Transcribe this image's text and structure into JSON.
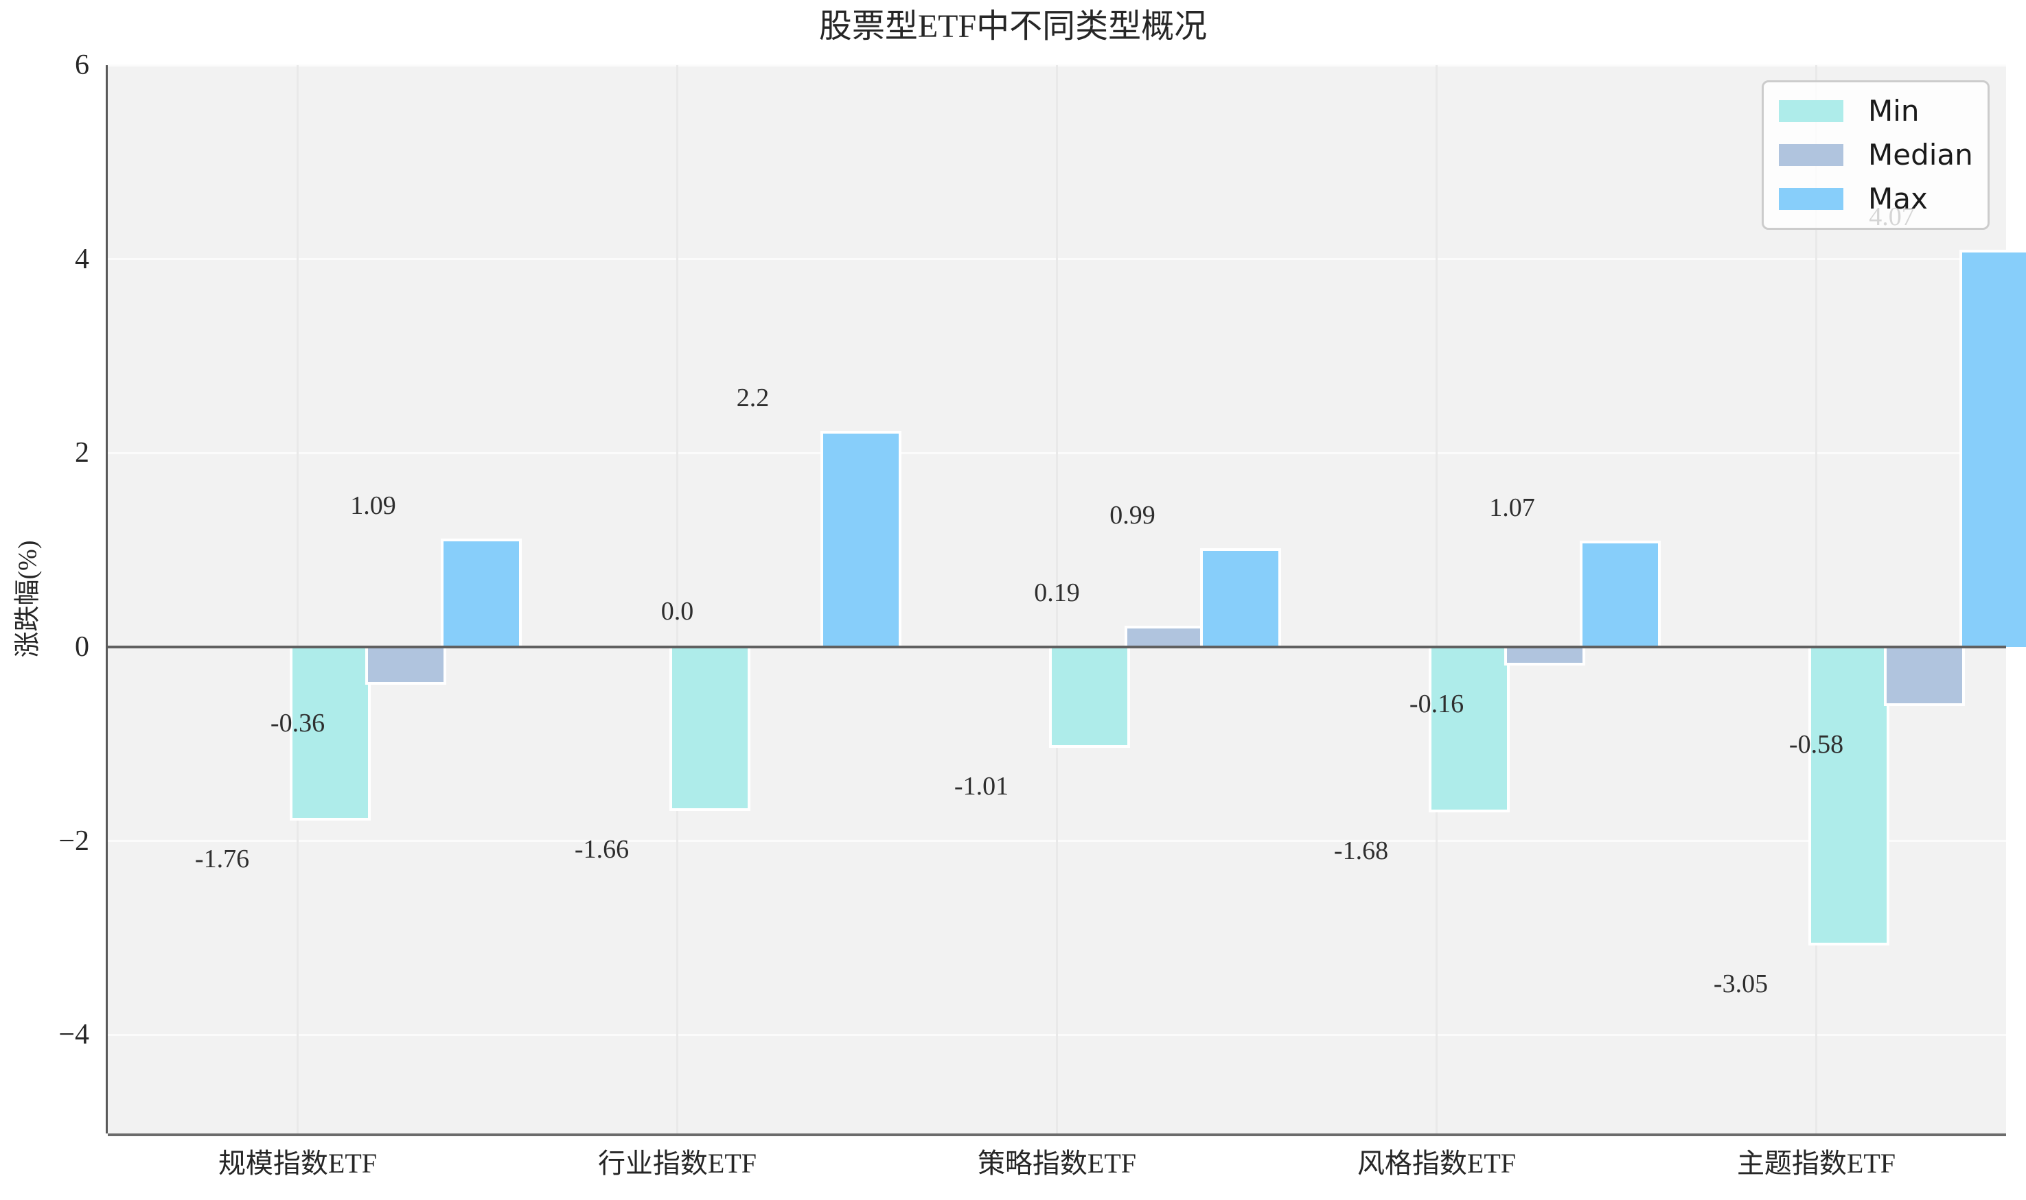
{
  "figure": {
    "title": "股票型ETF中不同类型概况"
  },
  "axes": {
    "y_label": "涨跌幅(%)",
    "y_ticks": [
      {
        "value": 6,
        "label": "6"
      },
      {
        "value": 4,
        "label": "4"
      },
      {
        "value": 2,
        "label": "2"
      },
      {
        "value": 0,
        "label": "0"
      },
      {
        "value": -2,
        "label": "−2"
      },
      {
        "value": -4,
        "label": "−4"
      }
    ],
    "x_ticks": [
      "规模指数ETF",
      "行业指数ETF",
      "策略指数ETF",
      "风格指数ETF",
      "主题指数ETF"
    ]
  },
  "legend": {
    "entries": [
      {
        "label": "Min",
        "color": "#AEECEA"
      },
      {
        "label": "Median",
        "color": "#B0C4DE"
      },
      {
        "label": "Max",
        "color": "#87CEFA"
      }
    ],
    "position": "upper right"
  },
  "colors": {
    "plot_background": "#f2f2f2",
    "horizontal_grid": "#fbfbfb",
    "vertical_grid": "#e9e9e9",
    "zero_line": "#606060",
    "spine": "#595959",
    "text": "#262626",
    "min_series": "#AEECEA",
    "median_series": "#B0C4DE",
    "max_series": "#87CEFA"
  },
  "chart_data": {
    "type": "bar",
    "title": "股票型ETF中不同类型概况",
    "xlabel": "",
    "ylabel": "涨跌幅(%)",
    "categories": [
      "规模指数ETF",
      "行业指数ETF",
      "策略指数ETF",
      "风格指数ETF",
      "主题指数ETF"
    ],
    "series": [
      {
        "name": "Min",
        "color": "#AEECEA",
        "values": [
          -1.76,
          -1.66,
          -1.01,
          -1.68,
          -3.05
        ],
        "labels": [
          "-1.76",
          "-1.66",
          "-1.01",
          "-1.68",
          "-3.05"
        ]
      },
      {
        "name": "Median",
        "color": "#B0C4DE",
        "values": [
          -0.36,
          0.0,
          0.19,
          -0.16,
          -0.58
        ],
        "labels": [
          "-0.36",
          "0.0",
          "0.19",
          "-0.16",
          "-0.58"
        ]
      },
      {
        "name": "Max",
        "color": "#87CEFA",
        "values": [
          1.09,
          2.2,
          0.99,
          1.07,
          4.07
        ],
        "labels": [
          "1.09",
          "2.2",
          "0.99",
          "1.07",
          "4.07"
        ]
      }
    ],
    "ylim": [
      -5.02,
      6.0
    ],
    "ytick_values": [
      6,
      4,
      2,
      0,
      -2,
      -4
    ],
    "grid": true,
    "legend_position": "upper right",
    "data_labels_shown": true
  }
}
